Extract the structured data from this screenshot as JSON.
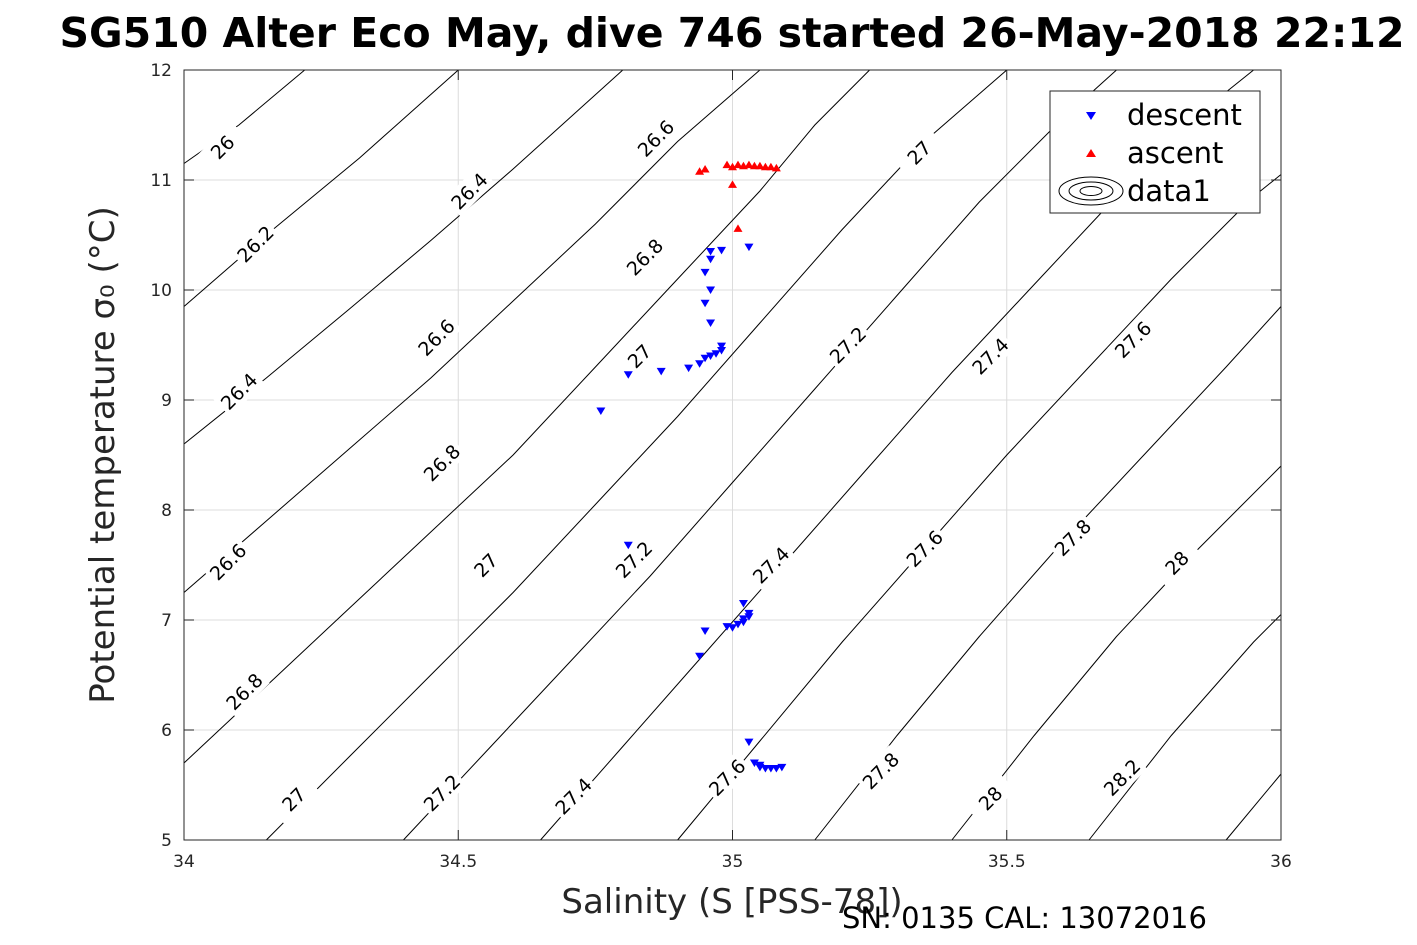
{
  "chart_data": {
    "type": "scatter",
    "title": "SG510 Alter Eco May, dive 746 started 26-May-2018 22:12",
    "xlabel": "Salinity (S [PSS-78])",
    "ylabel": "Potential temperature σ₀ (°C)",
    "xlim": [
      34,
      36
    ],
    "ylim": [
      5,
      12
    ],
    "x_ticks": [
      "34",
      "34.5",
      "35",
      "35.5",
      "36"
    ],
    "y_ticks": [
      "5",
      "6",
      "7",
      "8",
      "9",
      "10",
      "11",
      "12"
    ],
    "grid": true,
    "legend_position": "top-right",
    "footer": "SN: 0135  CAL: 13072016",
    "legend": [
      "descent",
      "ascent",
      "data1"
    ],
    "colors": {
      "descent": "#0000ff",
      "ascent": "#ff0000",
      "contour": "#000000",
      "grid": "#dcdcdc"
    },
    "contour_labels": [
      {
        "text": "26",
        "x": 34.07,
        "y": 11.3
      },
      {
        "text": "26.2",
        "x": 34.13,
        "y": 10.42
      },
      {
        "text": "26.4",
        "x": 34.52,
        "y": 10.9
      },
      {
        "text": "26.6",
        "x": 34.86,
        "y": 11.38
      },
      {
        "text": "26.4",
        "x": 34.1,
        "y": 9.08
      },
      {
        "text": "26.6",
        "x": 34.46,
        "y": 9.57
      },
      {
        "text": "26.8",
        "x": 34.84,
        "y": 10.3
      },
      {
        "text": "27",
        "x": 35.34,
        "y": 11.25
      },
      {
        "text": "26.6",
        "x": 34.08,
        "y": 7.53
      },
      {
        "text": "26.8",
        "x": 34.47,
        "y": 8.43
      },
      {
        "text": "27",
        "x": 34.83,
        "y": 9.4
      },
      {
        "text": "27.2",
        "x": 35.21,
        "y": 9.5
      },
      {
        "text": "27.4",
        "x": 35.47,
        "y": 9.4
      },
      {
        "text": "27.6",
        "x": 35.73,
        "y": 9.55
      },
      {
        "text": "26.8",
        "x": 34.11,
        "y": 6.35
      },
      {
        "text": "27",
        "x": 34.55,
        "y": 7.5
      },
      {
        "text": "27.2",
        "x": 34.82,
        "y": 7.55
      },
      {
        "text": "27.4",
        "x": 35.07,
        "y": 7.5
      },
      {
        "text": "27.6",
        "x": 35.35,
        "y": 7.65
      },
      {
        "text": "27.8",
        "x": 35.62,
        "y": 7.75
      },
      {
        "text": "28",
        "x": 35.81,
        "y": 7.52
      },
      {
        "text": "27",
        "x": 34.2,
        "y": 5.37
      },
      {
        "text": "27.2",
        "x": 34.47,
        "y": 5.43
      },
      {
        "text": "27.4",
        "x": 34.71,
        "y": 5.4
      },
      {
        "text": "27.6",
        "x": 34.99,
        "y": 5.57
      },
      {
        "text": "27.8",
        "x": 35.27,
        "y": 5.63
      },
      {
        "text": "28",
        "x": 35.47,
        "y": 5.38
      },
      {
        "text": "28.2",
        "x": 35.71,
        "y": 5.57
      }
    ],
    "contours": [
      {
        "level": 26.0,
        "points": [
          [
            34.0,
            11.15
          ],
          [
            34.1,
            11.5
          ],
          [
            34.22,
            12.0
          ]
        ]
      },
      {
        "level": 26.2,
        "points": [
          [
            34.0,
            9.85
          ],
          [
            34.15,
            10.5
          ],
          [
            34.32,
            11.2
          ],
          [
            34.5,
            12.0
          ]
        ]
      },
      {
        "level": 26.4,
        "points": [
          [
            34.0,
            8.6
          ],
          [
            34.15,
            9.2
          ],
          [
            34.3,
            9.82
          ],
          [
            34.45,
            10.45
          ],
          [
            34.6,
            11.1
          ],
          [
            34.8,
            12.0
          ]
        ]
      },
      {
        "level": 26.6,
        "points": [
          [
            34.0,
            7.25
          ],
          [
            34.15,
            7.9
          ],
          [
            34.3,
            8.55
          ],
          [
            34.45,
            9.2
          ],
          [
            34.6,
            9.9
          ],
          [
            34.75,
            10.6
          ],
          [
            34.9,
            11.35
          ],
          [
            35.05,
            12.0
          ]
        ]
      },
      {
        "level": 26.8,
        "points": [
          [
            34.0,
            5.7
          ],
          [
            34.15,
            6.4
          ],
          [
            34.3,
            7.1
          ],
          [
            34.45,
            7.8
          ],
          [
            34.6,
            8.5
          ],
          [
            34.75,
            9.3
          ],
          [
            34.9,
            10.1
          ],
          [
            35.05,
            10.9
          ],
          [
            35.15,
            11.5
          ],
          [
            35.25,
            12.0
          ]
        ]
      },
      {
        "level": 27.0,
        "points": [
          [
            34.15,
            5.0
          ],
          [
            34.3,
            5.75
          ],
          [
            34.45,
            6.5
          ],
          [
            34.6,
            7.25
          ],
          [
            34.75,
            8.05
          ],
          [
            34.9,
            8.85
          ],
          [
            35.05,
            9.7
          ],
          [
            35.2,
            10.55
          ],
          [
            35.35,
            11.35
          ],
          [
            35.5,
            12.0
          ]
        ]
      },
      {
        "level": 27.2,
        "points": [
          [
            34.4,
            5.0
          ],
          [
            34.55,
            5.8
          ],
          [
            34.7,
            6.6
          ],
          [
            34.85,
            7.4
          ],
          [
            35.0,
            8.25
          ],
          [
            35.15,
            9.1
          ],
          [
            35.3,
            9.95
          ],
          [
            35.45,
            10.8
          ],
          [
            35.6,
            11.55
          ],
          [
            35.7,
            12.0
          ]
        ]
      },
      {
        "level": 27.4,
        "points": [
          [
            34.65,
            5.0
          ],
          [
            34.8,
            5.85
          ],
          [
            34.95,
            6.7
          ],
          [
            35.1,
            7.55
          ],
          [
            35.25,
            8.4
          ],
          [
            35.4,
            9.25
          ],
          [
            35.55,
            10.05
          ],
          [
            35.7,
            10.85
          ],
          [
            35.85,
            11.6
          ],
          [
            35.95,
            12.0
          ]
        ]
      },
      {
        "level": 27.6,
        "points": [
          [
            34.9,
            5.0
          ],
          [
            35.05,
            5.9
          ],
          [
            35.2,
            6.8
          ],
          [
            35.35,
            7.65
          ],
          [
            35.5,
            8.5
          ],
          [
            35.65,
            9.3
          ],
          [
            35.8,
            10.1
          ],
          [
            35.95,
            10.85
          ],
          [
            36.0,
            11.05
          ]
        ]
      },
      {
        "level": 27.8,
        "points": [
          [
            35.15,
            5.0
          ],
          [
            35.3,
            5.95
          ],
          [
            35.45,
            6.85
          ],
          [
            35.6,
            7.7
          ],
          [
            35.75,
            8.5
          ],
          [
            35.9,
            9.3
          ],
          [
            36.0,
            9.85
          ]
        ]
      },
      {
        "level": 28.0,
        "points": [
          [
            35.4,
            5.0
          ],
          [
            35.55,
            5.95
          ],
          [
            35.7,
            6.85
          ],
          [
            35.85,
            7.65
          ],
          [
            36.0,
            8.4
          ]
        ]
      },
      {
        "level": 28.2,
        "points": [
          [
            35.65,
            5.0
          ],
          [
            35.8,
            5.95
          ],
          [
            35.95,
            6.8
          ],
          [
            36.0,
            7.05
          ]
        ]
      },
      {
        "level": 28.4,
        "points": [
          [
            35.9,
            5.0
          ],
          [
            36.0,
            5.6
          ]
        ]
      }
    ],
    "series": [
      {
        "name": "descent",
        "marker": "triangle-down",
        "points": [
          [
            34.76,
            8.9
          ],
          [
            34.81,
            9.23
          ],
          [
            34.87,
            9.26
          ],
          [
            34.92,
            9.29
          ],
          [
            34.94,
            9.33
          ],
          [
            34.95,
            9.38
          ],
          [
            34.96,
            9.4
          ],
          [
            34.97,
            9.42
          ],
          [
            34.98,
            9.45
          ],
          [
            34.98,
            9.49
          ],
          [
            34.96,
            9.7
          ],
          [
            34.95,
            9.88
          ],
          [
            34.96,
            10.0
          ],
          [
            34.95,
            10.16
          ],
          [
            34.96,
            10.28
          ],
          [
            34.96,
            10.35
          ],
          [
            34.98,
            10.36
          ],
          [
            35.03,
            10.39
          ],
          [
            34.81,
            7.68
          ],
          [
            34.94,
            6.67
          ],
          [
            34.95,
            6.9
          ],
          [
            34.99,
            6.94
          ],
          [
            35.0,
            6.93
          ],
          [
            35.01,
            6.96
          ],
          [
            35.02,
            6.98
          ],
          [
            35.02,
            7.01
          ],
          [
            35.03,
            7.03
          ],
          [
            35.03,
            7.06
          ],
          [
            35.02,
            7.15
          ],
          [
            35.03,
            5.89
          ],
          [
            35.04,
            5.7
          ],
          [
            35.05,
            5.68
          ],
          [
            35.05,
            5.66
          ],
          [
            35.06,
            5.65
          ],
          [
            35.07,
            5.65
          ],
          [
            35.08,
            5.65
          ],
          [
            35.09,
            5.66
          ]
        ]
      },
      {
        "name": "ascent",
        "marker": "triangle-up",
        "points": [
          [
            34.94,
            11.08
          ],
          [
            34.95,
            11.1
          ],
          [
            34.99,
            11.14
          ],
          [
            35.0,
            11.12
          ],
          [
            35.01,
            11.14
          ],
          [
            35.02,
            11.13
          ],
          [
            35.03,
            11.14
          ],
          [
            35.04,
            11.13
          ],
          [
            35.05,
            11.13
          ],
          [
            35.06,
            11.12
          ],
          [
            35.07,
            11.12
          ],
          [
            35.08,
            11.11
          ],
          [
            35.0,
            10.96
          ],
          [
            35.01,
            10.56
          ]
        ]
      }
    ]
  }
}
